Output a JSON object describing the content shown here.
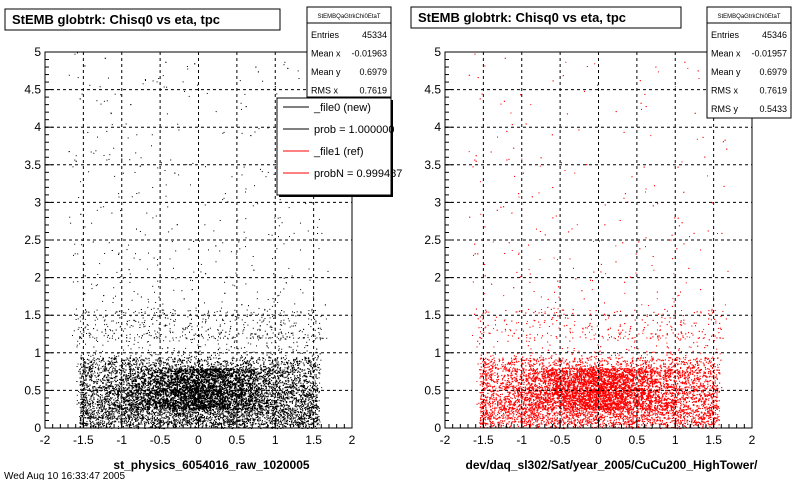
{
  "chart_data": [
    {
      "type": "scatter",
      "title": "StEMB globtrk: Chisq0 vs eta, tpc",
      "xlabel": "st_physics_6054016_raw_1020005",
      "xlim": [
        -2,
        2
      ],
      "ylim": [
        0,
        5
      ],
      "x_ticks": [
        "-2",
        "-1.5",
        "-1",
        "-0.5",
        "0",
        "0.5",
        "1",
        "1.5",
        "2"
      ],
      "y_ticks": [
        "0",
        "0.5",
        "1",
        "1.5",
        "2",
        "2.5",
        "3",
        "3.5",
        "4",
        "4.5",
        "5"
      ],
      "grid": true,
      "marker_color": "#000000",
      "stats": {
        "header": "StEMBQaGtrkChi0EtaT",
        "rows": [
          {
            "label": "Entries",
            "value": "45334"
          },
          {
            "label": "Mean x",
            "value": "-0.01963"
          },
          {
            "label": "Mean y",
            "value": "0.6979"
          },
          {
            "label": "RMS x",
            "value": "0.7619"
          }
        ]
      },
      "legend": {
        "placement": "top-right",
        "entries": [
          {
            "label": "_file0 (new)",
            "color": "#000000"
          },
          {
            "label": "prob = 1.000000",
            "color": "#000000"
          },
          {
            "label": "_file1 (ref)",
            "color": "#ff0000"
          },
          {
            "label": "probN = 0.999487",
            "color": "#ff0000"
          }
        ]
      }
    },
    {
      "type": "scatter",
      "title": "StEMB globtrk: Chisq0 vs eta, tpc",
      "xlabel": "dev/daq_sl302/Sat/year_2005/CuCu200_HighTower/",
      "xlim": [
        -2,
        2
      ],
      "ylim": [
        0,
        5
      ],
      "x_ticks": [
        "-2",
        "-1.5",
        "-1",
        "-0.5",
        "0",
        "0.5",
        "1",
        "1.5",
        "2"
      ],
      "y_ticks": [
        "0",
        "0.5",
        "1",
        "1.5",
        "2",
        "2.5",
        "3",
        "3.5",
        "4",
        "4.5",
        "5"
      ],
      "grid": true,
      "marker_color": "#ff0000",
      "stats": {
        "header": "StEMBQaGtrkChi0EtaT",
        "rows": [
          {
            "label": "Entries",
            "value": "45346"
          },
          {
            "label": "Mean x",
            "value": "-0.01957"
          },
          {
            "label": "Mean y",
            "value": "0.6979"
          },
          {
            "label": "RMS x",
            "value": "0.7619"
          },
          {
            "label": "RMS y",
            "value": "0.5433"
          }
        ]
      }
    }
  ],
  "footer_text": "Wed Aug 10 16:33:47 2005"
}
